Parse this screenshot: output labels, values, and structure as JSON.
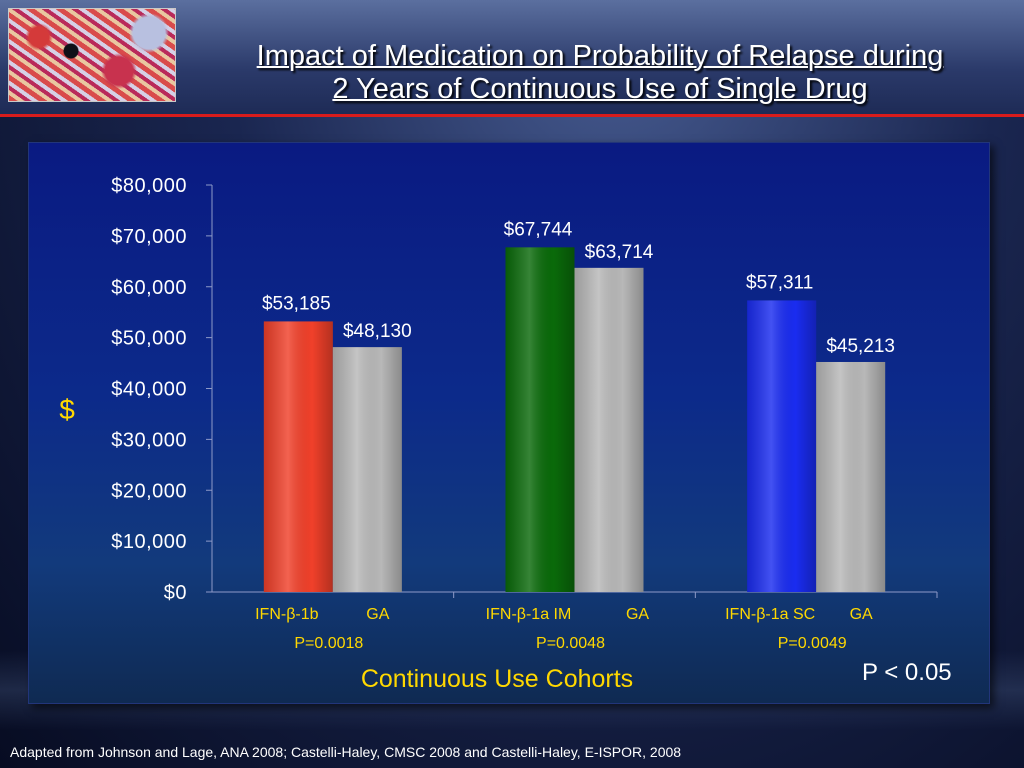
{
  "header": {
    "title_line1": "Impact of Medication on Probability of Relapse during",
    "title_line2": "2 Years of Continuous Use of Single Drug"
  },
  "footnote": "Adapted from Johnson and Lage, ANA 2008; Castelli-Haley, CMSC 2008 and Castelli-Haley, E-ISPOR, 2008",
  "chart_data": {
    "type": "bar",
    "title": "",
    "ylabel": "$",
    "xlabel": "Continuous Use Cohorts",
    "ylim": [
      0,
      80000
    ],
    "yticks": [
      "$0",
      "$10,000",
      "$20,000",
      "$30,000",
      "$40,000",
      "$50,000",
      "$60,000",
      "$70,000",
      "$80,000"
    ],
    "yticks_values": [
      0,
      10000,
      20000,
      30000,
      40000,
      50000,
      60000,
      70000,
      80000
    ],
    "groups": [
      {
        "bars": [
          {
            "label": "IFN-β-1b",
            "value": 53185,
            "value_label": "$53,185",
            "color": "#f0402a"
          },
          {
            "label": "GA",
            "value": 48130,
            "value_label": "$48,130",
            "color": "#b8b8b8"
          }
        ],
        "p_value": "P=0.0018"
      },
      {
        "bars": [
          {
            "label": "IFN-β-1a IM",
            "value": 67744,
            "value_label": "$67,744",
            "color": "#0a6a0a"
          },
          {
            "label": "GA",
            "value": 63714,
            "value_label": "$63,714",
            "color": "#b8b8b8"
          }
        ],
        "p_value": "P=0.0048"
      },
      {
        "bars": [
          {
            "label": "IFN-β-1a SC",
            "value": 57311,
            "value_label": "$57,311",
            "color": "#1a2cf0"
          },
          {
            "label": "GA",
            "value": 45213,
            "value_label": "$45,213",
            "color": "#b8b8b8"
          }
        ],
        "p_value": "P=0.0049"
      }
    ],
    "annotation": "P < 0.05",
    "grid": false,
    "legend": "none"
  }
}
